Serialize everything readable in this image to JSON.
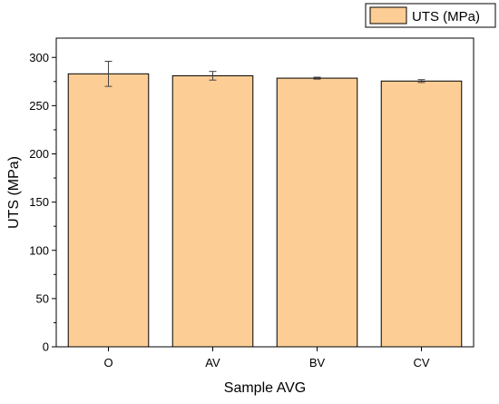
{
  "chart_data": {
    "type": "bar",
    "xlabel": "Sample AVG",
    "ylabel": "UTS (MPa)",
    "categories": [
      "O",
      "AV",
      "BV",
      "CV"
    ],
    "series": [
      {
        "name": "UTS (MPa)",
        "values": [
          283,
          281,
          278.5,
          275.5
        ],
        "errors": [
          13,
          4.5,
          1,
          1.5
        ],
        "color": "#FDCD96"
      }
    ],
    "ylim": [
      0,
      320
    ],
    "yticks": [
      0,
      50,
      100,
      150,
      200,
      250,
      300
    ],
    "grid": false,
    "legend_position": "top-right",
    "bar_edge_color": "#000000"
  }
}
